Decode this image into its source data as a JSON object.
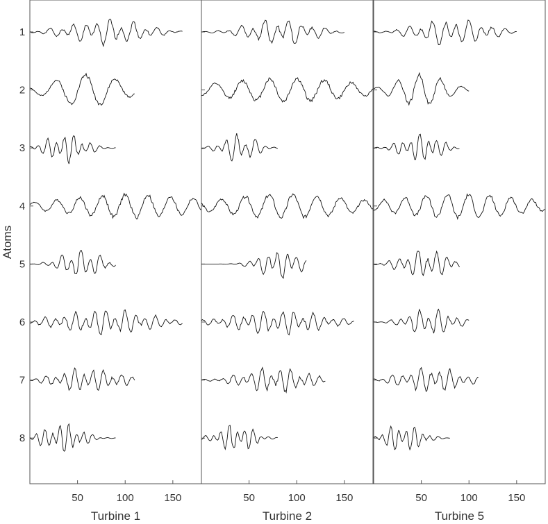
{
  "chart_data": {
    "type": "line",
    "ylabel": "Atoms",
    "row_labels": [
      "1",
      "2",
      "3",
      "4",
      "5",
      "6",
      "7",
      "8"
    ],
    "xticks": [
      50,
      100,
      150
    ],
    "xlim": [
      0,
      180
    ],
    "panels": [
      {
        "xlabel": "Turbine 1",
        "atoms": [
          {
            "length": 160,
            "freqs": [
              0.08,
              0.045
            ],
            "amp": 0.9,
            "center": 0.5,
            "sigma": 0.32,
            "seed": 1
          },
          {
            "length": 110,
            "freqs": [
              0.032
            ],
            "amp": 1.0,
            "center": 0.55,
            "sigma": 0.45,
            "seed": 2
          },
          {
            "length": 90,
            "freqs": [
              0.11,
              0.07
            ],
            "amp": 1.0,
            "center": 0.42,
            "sigma": 0.3,
            "seed": 3
          },
          {
            "length": 180,
            "freqs": [
              0.042
            ],
            "amp": 0.75,
            "center": 0.6,
            "sigma": 0.55,
            "seed": 4
          },
          {
            "length": 90,
            "freqs": [
              0.1,
              0.05
            ],
            "amp": 1.0,
            "center": 0.6,
            "sigma": 0.3,
            "seed": 5
          },
          {
            "length": 160,
            "freqs": [
              0.095,
              0.06
            ],
            "amp": 0.85,
            "center": 0.5,
            "sigma": 0.4,
            "seed": 6
          },
          {
            "length": 110,
            "freqs": [
              0.1,
              0.065
            ],
            "amp": 0.85,
            "center": 0.55,
            "sigma": 0.38,
            "seed": 7
          },
          {
            "length": 90,
            "freqs": [
              0.12,
              0.08
            ],
            "amp": 1.0,
            "center": 0.38,
            "sigma": 0.3,
            "seed": 8
          }
        ]
      },
      {
        "xlabel": "Turbine 2",
        "atoms": [
          {
            "length": 150,
            "freqs": [
              0.08,
              0.045
            ],
            "amp": 0.9,
            "center": 0.55,
            "sigma": 0.3,
            "seed": 11
          },
          {
            "length": 180,
            "freqs": [
              0.035
            ],
            "amp": 0.75,
            "center": 0.5,
            "sigma": 0.55,
            "seed": 12
          },
          {
            "length": 80,
            "freqs": [
              0.1,
              0.06
            ],
            "amp": 1.0,
            "center": 0.5,
            "sigma": 0.28,
            "seed": 13
          },
          {
            "length": 180,
            "freqs": [
              0.04
            ],
            "amp": 0.75,
            "center": 0.5,
            "sigma": 0.55,
            "seed": 14
          },
          {
            "length": 110,
            "freqs": [
              0.1,
              0.05
            ],
            "amp": 1.0,
            "center": 0.75,
            "sigma": 0.25,
            "seed": 15
          },
          {
            "length": 160,
            "freqs": [
              0.095,
              0.06
            ],
            "amp": 0.85,
            "center": 0.5,
            "sigma": 0.38,
            "seed": 16
          },
          {
            "length": 130,
            "freqs": [
              0.1,
              0.065
            ],
            "amp": 0.85,
            "center": 0.6,
            "sigma": 0.35,
            "seed": 17
          },
          {
            "length": 80,
            "freqs": [
              0.12,
              0.08
            ],
            "amp": 1.0,
            "center": 0.45,
            "sigma": 0.3,
            "seed": 18
          }
        ]
      },
      {
        "xlabel": "Turbine 5",
        "atoms": [
          {
            "length": 150,
            "freqs": [
              0.08,
              0.05
            ],
            "amp": 0.9,
            "center": 0.55,
            "sigma": 0.32,
            "seed": 21
          },
          {
            "length": 100,
            "freqs": [
              0.045
            ],
            "amp": 1.0,
            "center": 0.5,
            "sigma": 0.35,
            "seed": 22
          },
          {
            "length": 90,
            "freqs": [
              0.11,
              0.07
            ],
            "amp": 1.0,
            "center": 0.55,
            "sigma": 0.3,
            "seed": 23
          },
          {
            "length": 180,
            "freqs": [
              0.045
            ],
            "amp": 0.75,
            "center": 0.5,
            "sigma": 0.55,
            "seed": 24
          },
          {
            "length": 90,
            "freqs": [
              0.1,
              0.06
            ],
            "amp": 1.0,
            "center": 0.6,
            "sigma": 0.35,
            "seed": 25
          },
          {
            "length": 100,
            "freqs": [
              0.1,
              0.06
            ],
            "amp": 1.0,
            "center": 0.6,
            "sigma": 0.3,
            "seed": 26
          },
          {
            "length": 110,
            "freqs": [
              0.1,
              0.065
            ],
            "amp": 0.85,
            "center": 0.55,
            "sigma": 0.38,
            "seed": 27
          },
          {
            "length": 80,
            "freqs": [
              0.12,
              0.08
            ],
            "amp": 1.0,
            "center": 0.4,
            "sigma": 0.3,
            "seed": 28
          }
        ]
      }
    ]
  }
}
